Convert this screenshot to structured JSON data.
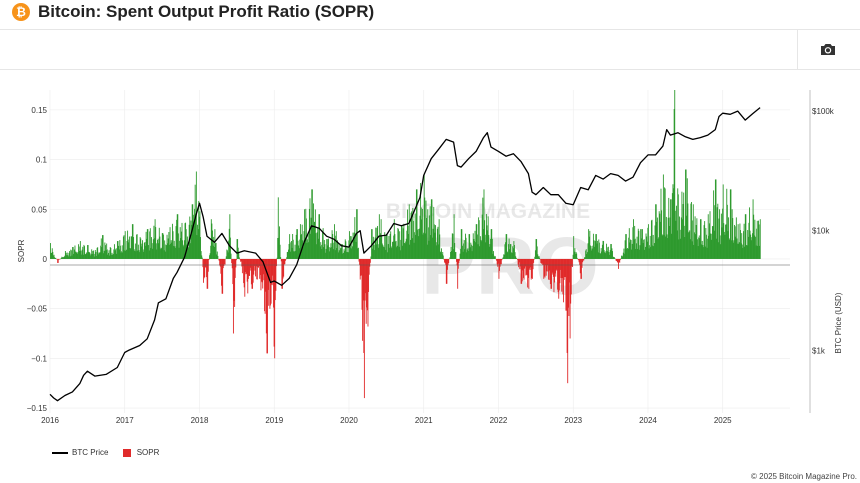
{
  "header": {
    "logo_glyph": "₿",
    "logo_icon": "bitcoin-icon",
    "title": "Bitcoin: Spent Output Profit Ratio (SOPR)"
  },
  "toolbar": {
    "screenshot_icon": "camera-icon"
  },
  "watermark": {
    "line1": "BITCOIN MAGAZINE",
    "line2": "PRO"
  },
  "legend": {
    "btc_label": "BTC Price",
    "sopr_label": "SOPR"
  },
  "footer": {
    "copyright": "© 2025 Bitcoin Magazine Pro."
  },
  "colors": {
    "price_line": "#000000",
    "positive": "#2e9a2e",
    "negative": "#e02b2b",
    "grid": "#ececec",
    "text": "#333333"
  },
  "chart_data": {
    "type": "bar",
    "title": "Bitcoin: Spent Output Profit Ratio (SOPR)",
    "x_axis": {
      "range": [
        2016.0,
        2025.9
      ],
      "ticks": [
        "2016",
        "2017",
        "2018",
        "2019",
        "2020",
        "2021",
        "2022",
        "2023",
        "2024",
        "2025"
      ]
    },
    "y_left": {
      "label": "SOPR",
      "range": [
        -0.155,
        0.17
      ],
      "ticks": [
        0.15,
        0.1,
        0.05,
        0,
        -0.05,
        -0.1,
        -0.15
      ],
      "tick_labels": [
        "0.15",
        "0.1",
        "0.05",
        "0",
        "−0.05",
        "−0.1",
        "−0.15"
      ]
    },
    "y_right": {
      "label": "BTC Price (USD)",
      "scale": "log",
      "range": [
        300,
        150000
      ],
      "ticks": [
        1000,
        10000,
        100000
      ],
      "tick_labels": [
        "$1k",
        "$10k",
        "$100k"
      ]
    },
    "grid": true,
    "legend_position": "bottom-left",
    "series": [
      {
        "name": "BTC Price",
        "type": "line",
        "axis": "right",
        "x": [
          2016.0,
          2016.05,
          2016.1,
          2016.2,
          2016.3,
          2016.4,
          2016.45,
          2016.5,
          2016.6,
          2016.75,
          2016.9,
          2017.0,
          2017.05,
          2017.2,
          2017.3,
          2017.4,
          2017.45,
          2017.55,
          2017.65,
          2017.7,
          2017.8,
          2017.9,
          2017.96,
          2018.0,
          2018.05,
          2018.1,
          2018.2,
          2018.3,
          2018.4,
          2018.5,
          2018.6,
          2018.75,
          2018.85,
          2018.95,
          2019.0,
          2019.1,
          2019.2,
          2019.3,
          2019.4,
          2019.5,
          2019.6,
          2019.7,
          2019.8,
          2019.9,
          2020.0,
          2020.1,
          2020.15,
          2020.2,
          2020.3,
          2020.4,
          2020.5,
          2020.6,
          2020.7,
          2020.8,
          2020.9,
          2020.95,
          2021.0,
          2021.1,
          2021.2,
          2021.3,
          2021.4,
          2021.45,
          2021.5,
          2021.6,
          2021.7,
          2021.8,
          2021.85,
          2021.9,
          2022.0,
          2022.1,
          2022.2,
          2022.3,
          2022.4,
          2022.45,
          2022.5,
          2022.6,
          2022.7,
          2022.8,
          2022.9,
          2023.0,
          2023.1,
          2023.2,
          2023.3,
          2023.4,
          2023.5,
          2023.6,
          2023.7,
          2023.8,
          2023.9,
          2024.0,
          2024.1,
          2024.2,
          2024.25,
          2024.3,
          2024.4,
          2024.5,
          2024.6,
          2024.7,
          2024.8,
          2024.9,
          2024.95,
          2025.0,
          2025.1,
          2025.2,
          2025.3,
          2025.4,
          2025.5
        ],
        "y": [
          430,
          400,
          380,
          420,
          450,
          530,
          620,
          670,
          610,
          630,
          720,
          960,
          1000,
          1100,
          1250,
          1800,
          2500,
          2700,
          4000,
          4500,
          6000,
          10000,
          14000,
          17000,
          13000,
          9000,
          8000,
          9500,
          7500,
          6500,
          6800,
          6500,
          5500,
          3700,
          3800,
          3500,
          4000,
          5200,
          8000,
          11000,
          10500,
          9000,
          8500,
          7500,
          7300,
          9500,
          10000,
          6500,
          7500,
          9000,
          9200,
          11500,
          11000,
          11500,
          16000,
          19000,
          29000,
          40000,
          48000,
          58000,
          55000,
          35000,
          34000,
          40000,
          46000,
          60000,
          66000,
          50000,
          46000,
          42000,
          44000,
          38000,
          30000,
          21000,
          20000,
          23000,
          20000,
          20000,
          17000,
          16500,
          23000,
          22000,
          29000,
          27000,
          30000,
          29000,
          26000,
          28000,
          37000,
          43000,
          43000,
          51000,
          70000,
          63000,
          66000,
          61000,
          58000,
          60000,
          63000,
          70000,
          90000,
          96000,
          94000,
          100000,
          84000,
          95000,
          107000
        ]
      },
      {
        "name": "SOPR",
        "type": "bar",
        "axis": "left",
        "x": [
          2016.0,
          2016.1,
          2016.2,
          2016.3,
          2016.4,
          2016.5,
          2016.6,
          2016.7,
          2016.8,
          2016.9,
          2017.0,
          2017.1,
          2017.2,
          2017.3,
          2017.4,
          2017.5,
          2017.6,
          2017.7,
          2017.8,
          2017.9,
          2017.95,
          2018.0,
          2018.05,
          2018.1,
          2018.15,
          2018.2,
          2018.3,
          2018.4,
          2018.45,
          2018.5,
          2018.6,
          2018.7,
          2018.8,
          2018.9,
          2018.95,
          2019.0,
          2019.05,
          2019.1,
          2019.2,
          2019.3,
          2019.4,
          2019.5,
          2019.6,
          2019.7,
          2019.8,
          2019.9,
          2020.0,
          2020.1,
          2020.2,
          2020.25,
          2020.3,
          2020.4,
          2020.5,
          2020.6,
          2020.7,
          2020.8,
          2020.9,
          2021.0,
          2021.05,
          2021.1,
          2021.2,
          2021.3,
          2021.4,
          2021.45,
          2021.5,
          2021.6,
          2021.7,
          2021.8,
          2021.9,
          2022.0,
          2022.1,
          2022.2,
          2022.3,
          2022.4,
          2022.45,
          2022.5,
          2022.6,
          2022.7,
          2022.8,
          2022.9,
          2022.92,
          2022.95,
          2023.0,
          2023.1,
          2023.2,
          2023.3,
          2023.4,
          2023.5,
          2023.6,
          2023.7,
          2023.8,
          2023.9,
          2024.0,
          2024.1,
          2024.2,
          2024.3,
          2024.35,
          2024.4,
          2024.5,
          2024.6,
          2024.7,
          2024.8,
          2024.9,
          2024.95,
          2025.0,
          2025.1,
          2025.2,
          2025.3,
          2025.4,
          2025.5
        ],
        "y": [
          0.016,
          -0.004,
          0.008,
          0.012,
          0.018,
          0.014,
          0.009,
          0.024,
          0.012,
          0.018,
          0.028,
          0.035,
          0.022,
          0.03,
          0.04,
          0.026,
          0.032,
          0.045,
          0.036,
          0.055,
          0.088,
          0.048,
          -0.024,
          -0.03,
          0.04,
          0.03,
          -0.035,
          0.045,
          -0.075,
          0.02,
          -0.038,
          -0.03,
          -0.02,
          -0.095,
          -0.045,
          -0.1,
          0.062,
          -0.03,
          0.025,
          0.03,
          0.05,
          0.07,
          0.045,
          0.02,
          0.035,
          0.015,
          0.028,
          0.05,
          -0.14,
          -0.068,
          0.03,
          0.045,
          0.025,
          0.04,
          0.034,
          0.055,
          0.07,
          0.085,
          0.05,
          0.06,
          0.04,
          -0.025,
          0.045,
          -0.03,
          0.03,
          0.025,
          0.035,
          0.07,
          0.03,
          -0.02,
          0.025,
          0.018,
          -0.025,
          -0.03,
          -0.02,
          0.02,
          -0.02,
          -0.03,
          -0.04,
          -0.052,
          -0.125,
          -0.08,
          0.023,
          -0.02,
          0.03,
          0.025,
          0.018,
          0.015,
          -0.01,
          0.025,
          0.04,
          0.03,
          0.035,
          0.055,
          0.085,
          0.06,
          0.17,
          0.065,
          0.09,
          0.055,
          0.04,
          0.045,
          0.08,
          0.05,
          0.075,
          0.07,
          0.035,
          0.045,
          0.06,
          0.04
        ]
      }
    ]
  }
}
